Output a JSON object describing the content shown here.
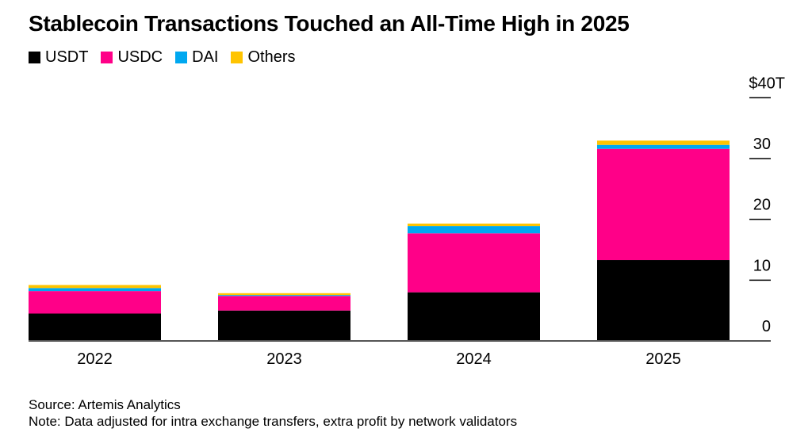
{
  "title": "Stablecoin Transactions Touched an All-Time High in 2025",
  "chart_data": {
    "type": "bar",
    "stacked": true,
    "categories": [
      "2022",
      "2023",
      "2024",
      "2025"
    ],
    "series": [
      {
        "name": "USDT",
        "color": "#000000",
        "values": [
          4.5,
          5.0,
          8.0,
          13.3
        ]
      },
      {
        "name": "USDC",
        "color": "#ff0088",
        "values": [
          3.7,
          2.4,
          9.7,
          18.3
        ]
      },
      {
        "name": "DAI",
        "color": "#00a8f0",
        "values": [
          0.5,
          0.15,
          1.2,
          0.65
        ]
      },
      {
        "name": "Others",
        "color": "#ffc400",
        "values": [
          0.5,
          0.3,
          0.4,
          0.7
        ]
      }
    ],
    "ylim": [
      0,
      40
    ],
    "yticks": [
      0,
      10,
      20,
      30,
      40
    ],
    "ytick_labels": [
      "0",
      "10",
      "20",
      "30",
      "$40T"
    ],
    "yaxis_position": "right",
    "legend_position": "top-left",
    "grid": false
  },
  "footer": {
    "source": "Source: Artemis Analytics",
    "note": "Note: Data adjusted for intra exchange transfers, extra profit by network validators"
  }
}
